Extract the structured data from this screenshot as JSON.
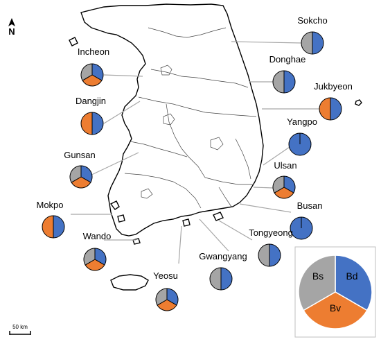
{
  "north_arrow": {
    "label": "N"
  },
  "scale_bar": {
    "label": "50 km"
  },
  "colors": {
    "Bd": "#4472c4",
    "Bv": "#ed7d31",
    "Bs": "#a5a5a5",
    "outline": "#000000",
    "leader": "#a6a6a6"
  },
  "legend": {
    "segments": [
      {
        "code": "Bd",
        "fraction": 0.3333,
        "color": "#4472c4"
      },
      {
        "code": "Bv",
        "fraction": 0.3333,
        "color": "#ed7d31"
      },
      {
        "code": "Bs",
        "fraction": 0.3334,
        "color": "#a5a5a5"
      }
    ]
  },
  "ports": [
    {
      "name": "Sokcho",
      "slices": [
        {
          "code": "Bd",
          "fraction": 0.5
        },
        {
          "code": "Bs",
          "fraction": 0.5
        }
      ]
    },
    {
      "name": "Donghae",
      "slices": [
        {
          "code": "Bd",
          "fraction": 0.5
        },
        {
          "code": "Bs",
          "fraction": 0.5
        }
      ]
    },
    {
      "name": "Jukbyeon",
      "slices": [
        {
          "code": "Bd",
          "fraction": 0.5
        },
        {
          "code": "Bv",
          "fraction": 0.5
        }
      ]
    },
    {
      "name": "Yangpo",
      "slices": [
        {
          "code": "Bd",
          "fraction": 1.0
        }
      ]
    },
    {
      "name": "Ulsan",
      "slices": [
        {
          "code": "Bd",
          "fraction": 0.3333
        },
        {
          "code": "Bv",
          "fraction": 0.3333
        },
        {
          "code": "Bs",
          "fraction": 0.3334
        }
      ]
    },
    {
      "name": "Busan",
      "slices": [
        {
          "code": "Bd",
          "fraction": 1.0
        }
      ]
    },
    {
      "name": "Tongyeong",
      "slices": [
        {
          "code": "Bd",
          "fraction": 0.5
        },
        {
          "code": "Bs",
          "fraction": 0.5
        }
      ]
    },
    {
      "name": "Gwangyang",
      "slices": [
        {
          "code": "Bd",
          "fraction": 0.5
        },
        {
          "code": "Bs",
          "fraction": 0.5
        }
      ]
    },
    {
      "name": "Yeosu",
      "slices": [
        {
          "code": "Bd",
          "fraction": 0.3333
        },
        {
          "code": "Bv",
          "fraction": 0.3333
        },
        {
          "code": "Bs",
          "fraction": 0.3334
        }
      ]
    },
    {
      "name": "Wando",
      "slices": [
        {
          "code": "Bd",
          "fraction": 0.3333
        },
        {
          "code": "Bv",
          "fraction": 0.3333
        },
        {
          "code": "Bs",
          "fraction": 0.3334
        }
      ]
    },
    {
      "name": "Mokpo",
      "slices": [
        {
          "code": "Bd",
          "fraction": 0.5
        },
        {
          "code": "Bv",
          "fraction": 0.5
        }
      ]
    },
    {
      "name": "Gunsan",
      "slices": [
        {
          "code": "Bd",
          "fraction": 0.3333
        },
        {
          "code": "Bv",
          "fraction": 0.3333
        },
        {
          "code": "Bs",
          "fraction": 0.3334
        }
      ]
    },
    {
      "name": "Dangjin",
      "slices": [
        {
          "code": "Bd",
          "fraction": 0.5
        },
        {
          "code": "Bv",
          "fraction": 0.5
        }
      ]
    },
    {
      "name": "Incheon",
      "slices": [
        {
          "code": "Bd",
          "fraction": 0.3333
        },
        {
          "code": "Bv",
          "fraction": 0.3333
        },
        {
          "code": "Bs",
          "fraction": 0.3334
        }
      ]
    }
  ]
}
